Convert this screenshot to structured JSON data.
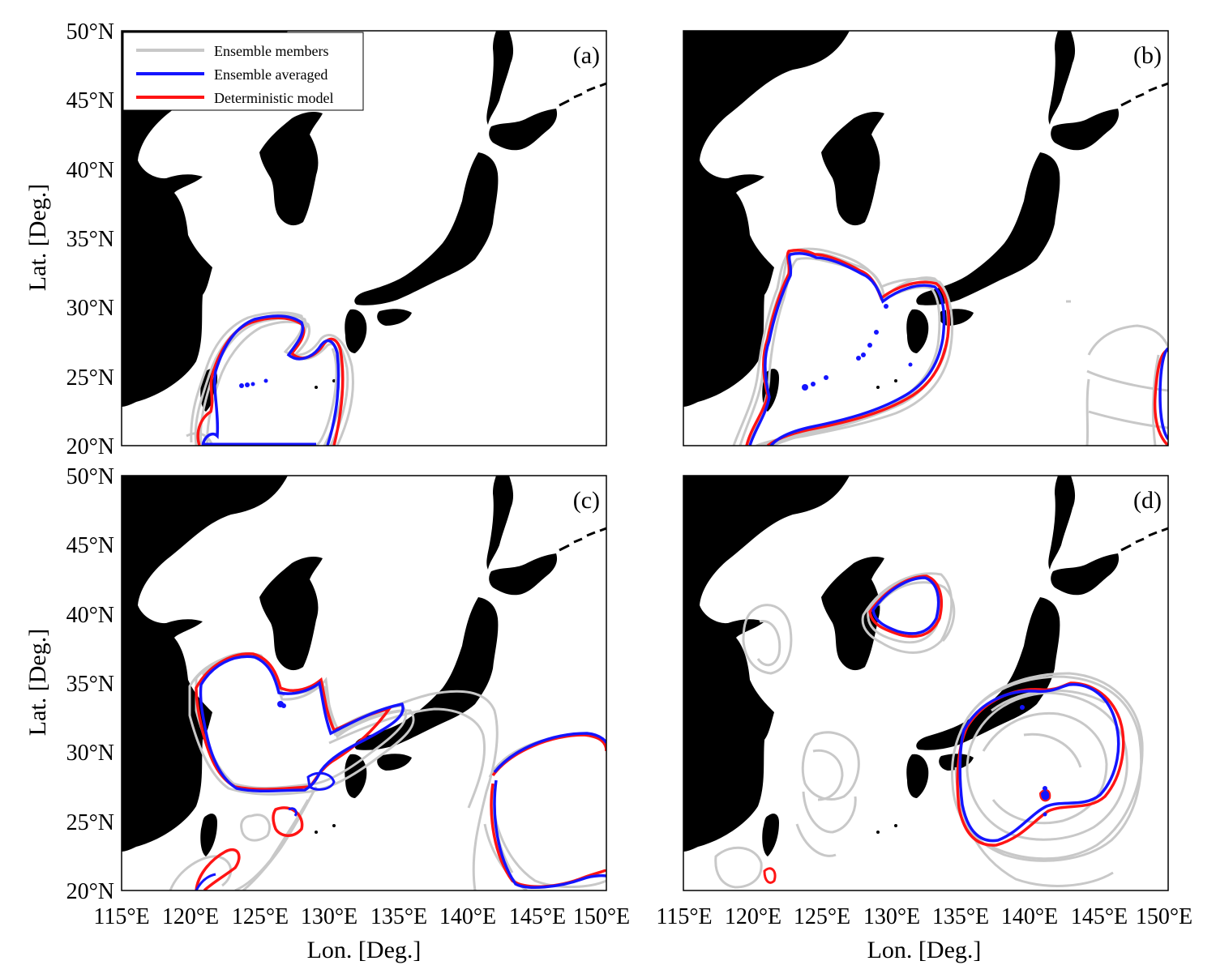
{
  "axes": {
    "ylabel": "Lat. [Deg.]",
    "xlabel": "Lon. [Deg.]",
    "lat_ticks": [
      "50°N",
      "45°N",
      "40°N",
      "35°N",
      "30°N",
      "25°N",
      "20°N"
    ],
    "lon_ticks": [
      "115°E",
      "120°E",
      "125°E",
      "130°E",
      "135°E",
      "140°E",
      "145°E",
      "150°E"
    ],
    "lon_range": [
      115,
      150
    ],
    "lat_range": [
      20,
      50
    ]
  },
  "legend": {
    "members": "Ensemble members",
    "averaged": "Ensemble averaged",
    "deterministic": "Deterministic model"
  },
  "colors": {
    "land": "#000000",
    "members": "#c8c8c8",
    "averaged": "#1414ff",
    "deterministic": "#ff1414"
  },
  "panels": [
    {
      "id": "a",
      "label": "(a)"
    },
    {
      "id": "b",
      "label": "(b)"
    },
    {
      "id": "c",
      "label": "(c)"
    },
    {
      "id": "d",
      "label": "(d)"
    }
  ]
}
